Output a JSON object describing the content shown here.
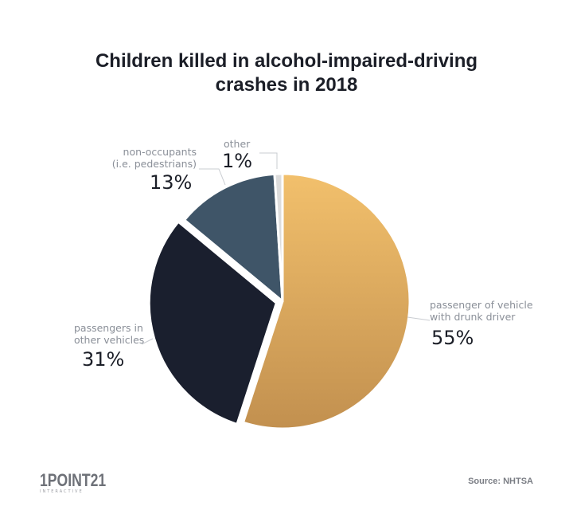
{
  "chart_data": {
    "type": "pie",
    "title": "Children killed in alcohol-impaired-driving crashes in 2018",
    "title_lines": [
      "Children killed in alcohol-impaired-driving",
      "crashes in 2018"
    ],
    "slices": [
      {
        "label": "passenger of vehicle with drunk driver",
        "label_lines": [
          "passenger of vehicle",
          "with drunk driver"
        ],
        "value": 55,
        "value_label": "55%",
        "color": "#e2ab5e"
      },
      {
        "label": "passengers in other vehicles",
        "label_lines": [
          "passengers in",
          "other vehicles"
        ],
        "value": 31,
        "value_label": "31%",
        "color": "#1a1f2e",
        "exploded": true
      },
      {
        "label": "non-occupants (i.e. pedestrians)",
        "label_lines": [
          "non-occupants",
          "(i.e. pedestrians)"
        ],
        "value": 13,
        "value_label": "13%",
        "color": "#3f5568"
      },
      {
        "label": "other",
        "label_lines": [
          "other"
        ],
        "value": 1,
        "value_label": "1%",
        "color": "#dcdcdc"
      }
    ],
    "start_angle": "12 o'clock",
    "direction": "clockwise"
  },
  "footer": {
    "logo": "1POINT21",
    "logo_sub": "INTERACTIVE",
    "source": "Source: NHTSA"
  }
}
